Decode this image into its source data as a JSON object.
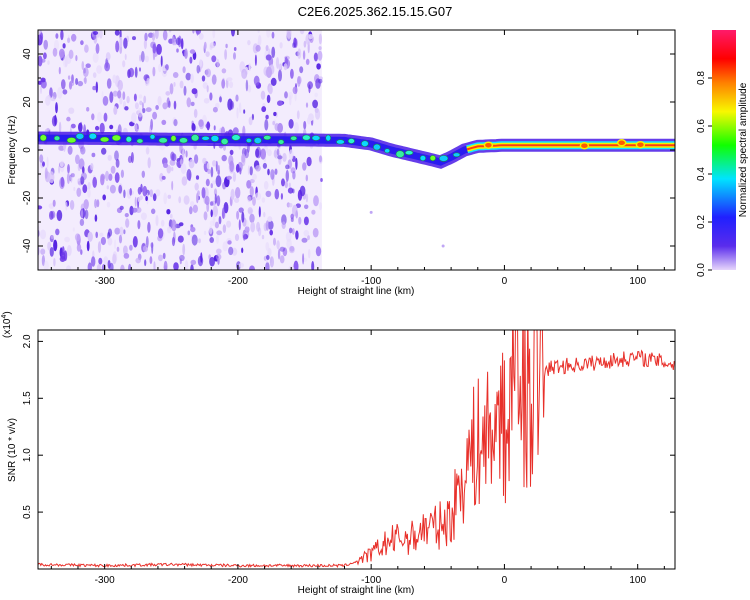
{
  "title": "C2E6.2025.362.15.15.G07",
  "chart_data": [
    {
      "type": "heatmap",
      "name": "spectrogram",
      "title": "C2E6.2025.362.15.15.G07",
      "xlabel": "Height of straight line (km)",
      "ylabel": "Frequency (Hz)",
      "xlim": [
        -350,
        128
      ],
      "ylim": [
        -50,
        50
      ],
      "xticks": [
        -300,
        -200,
        -100,
        0,
        100
      ],
      "yticks": [
        -40,
        -20,
        0,
        20,
        40
      ],
      "noise_region_x": [
        -350,
        -137
      ],
      "signal_track": {
        "x": [
          -350,
          -300,
          -250,
          -200,
          -150,
          -120,
          -100,
          -85,
          -70,
          -55,
          -48,
          -40,
          -30,
          -20,
          0,
          50,
          128
        ],
        "freq_hz": [
          5,
          4.8,
          4.5,
          4.3,
          4.2,
          4.0,
          2.5,
          0,
          -2,
          -4,
          -5,
          -3,
          0,
          1.5,
          2,
          2,
          2
        ]
      },
      "colorbar": {
        "label": "Normalized spectral amplitude",
        "range": [
          0.0,
          1.0
        ],
        "ticks": [
          "0.0",
          "0.2",
          "0.4",
          "0.6",
          "0.8"
        ],
        "colors": [
          "#e6d6fb",
          "#3b0be0",
          "#1b3cff",
          "#00e4ff",
          "#10ff00",
          "#f8f800",
          "#ff7a00",
          "#ff0000",
          "#ff1a6a"
        ]
      }
    },
    {
      "type": "line",
      "name": "snr",
      "xlabel": "Height of straight line (km)",
      "ylabel": "SNR (10 * v/v)",
      "exponent_label": "(x10",
      "exponent_power": "4",
      "exponent_close": ")",
      "xlim": [
        -350,
        128
      ],
      "ylim": [
        0,
        21000
      ],
      "xticks": [
        -300,
        -200,
        -100,
        0,
        100
      ],
      "yticks": [
        5000,
        10000,
        15000,
        20000
      ],
      "ytick_labels": [
        "0.5",
        "1.0",
        "1.5",
        "2.0"
      ],
      "series": [
        {
          "name": "SNR",
          "color": "#e8302a",
          "x": [
            -350,
            -300,
            -250,
            -200,
            -150,
            -120,
            -110,
            -100,
            -90,
            -80,
            -70,
            -60,
            -50,
            -40,
            -30,
            -20,
            -10,
            0,
            5,
            8,
            10,
            15,
            20,
            30,
            40,
            60,
            80,
            100,
            128
          ],
          "y": [
            400,
            300,
            400,
            300,
            300,
            300,
            700,
            1300,
            2200,
            2700,
            2700,
            3600,
            3700,
            4500,
            9000,
            11000,
            12000,
            11500,
            16000,
            21000,
            14000,
            14500,
            15500,
            17500,
            17800,
            18000,
            18300,
            18600,
            18000
          ]
        }
      ]
    }
  ]
}
